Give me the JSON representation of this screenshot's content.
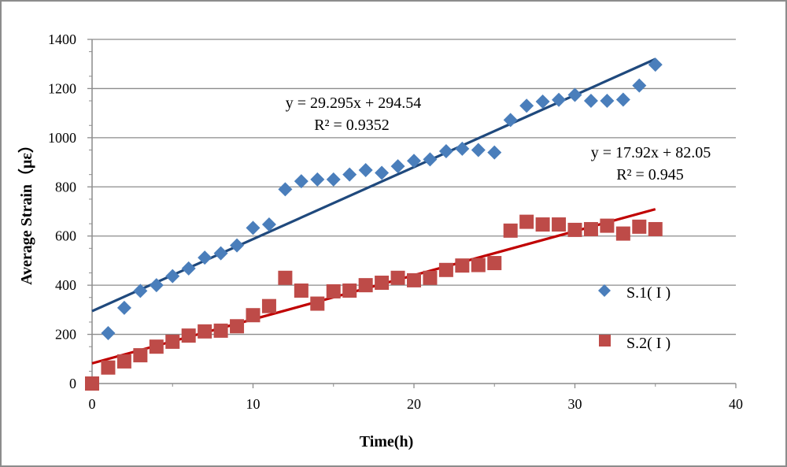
{
  "chart_data": {
    "type": "scatter",
    "title": "",
    "xlabel": "Time(h)",
    "ylabel": "Average Strain（με）",
    "xlim": [
      0,
      40
    ],
    "ylim": [
      0,
      1400
    ],
    "xticks": [
      0,
      10,
      20,
      30,
      40
    ],
    "yticks": [
      0,
      200,
      400,
      600,
      800,
      1000,
      1200,
      1400
    ],
    "xtick_labels": [
      "0",
      "10",
      "20",
      "30",
      "40"
    ],
    "ytick_labels": [
      "0",
      "200",
      "400",
      "600",
      "800",
      "1000",
      "1200",
      "1400"
    ],
    "grid": "horizontal",
    "legend_position": "right",
    "series": [
      {
        "name": "S.1( I )",
        "marker": "diamond",
        "color": "#4a7ebb",
        "x": [
          1,
          2,
          3,
          4,
          5,
          6,
          7,
          8,
          9,
          10,
          11,
          12,
          13,
          14,
          15,
          16,
          17,
          18,
          19,
          20,
          21,
          22,
          23,
          24,
          25,
          26,
          27,
          28,
          29,
          30,
          31,
          32,
          33,
          34,
          35
        ],
        "y": [
          205,
          308,
          377,
          400,
          437,
          468,
          512,
          530,
          562,
          633,
          647,
          790,
          823,
          830,
          830,
          850,
          868,
          857,
          884,
          906,
          912,
          945,
          955,
          950,
          940,
          1072,
          1130,
          1147,
          1154,
          1174,
          1150,
          1150,
          1155,
          1212,
          1297
        ],
        "trendline": {
          "slope": 29.295,
          "intercept": 294.54,
          "x_range": [
            0,
            35
          ],
          "color": "#1f497d"
        },
        "equation": "y = 29.295x + 294.54",
        "r_squared": "R² = 0.9352"
      },
      {
        "name": "S.2( I )",
        "marker": "square",
        "color": "#be4b48",
        "x": [
          0,
          1,
          2,
          3,
          4,
          5,
          6,
          7,
          8,
          9,
          10,
          11,
          12,
          13,
          14,
          15,
          16,
          17,
          18,
          19,
          20,
          21,
          22,
          23,
          24,
          25,
          26,
          27,
          28,
          29,
          30,
          31,
          32,
          33,
          34,
          35
        ],
        "y": [
          0,
          65,
          90,
          115,
          150,
          170,
          195,
          212,
          215,
          233,
          278,
          315,
          430,
          378,
          325,
          375,
          378,
          400,
          410,
          430,
          420,
          430,
          462,
          480,
          482,
          490,
          622,
          658,
          647,
          647,
          625,
          628,
          642,
          610,
          638,
          628
        ],
        "trendline": {
          "slope": 17.92,
          "intercept": 82.05,
          "x_range": [
            0,
            35
          ],
          "color": "#c00000"
        },
        "equation": "y = 17.92x + 82.05",
        "r_squared": "R² = 0.945"
      }
    ]
  }
}
